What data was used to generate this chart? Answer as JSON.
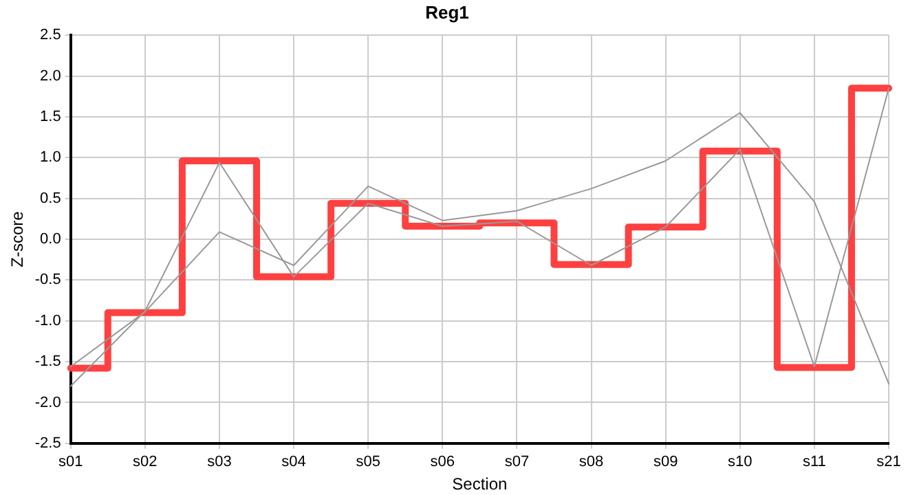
{
  "chart_data": {
    "type": "line",
    "title": "Reg1",
    "xlabel": "Section",
    "ylabel": "Z-score",
    "categories": [
      "s01",
      "s02",
      "s03",
      "s04",
      "s05",
      "s06",
      "s07",
      "s08",
      "s09",
      "s10",
      "s11",
      "s21"
    ],
    "series": [
      {
        "type": "line",
        "color": "#999999",
        "values": [
          -1.8,
          -0.88,
          0.94,
          -0.46,
          0.44,
          0.16,
          0.22,
          -0.32,
          0.15,
          1.1,
          -1.56,
          1.85
        ]
      },
      {
        "type": "line",
        "color": "#999999",
        "values": [
          -1.56,
          -0.89,
          0.09,
          -0.32,
          0.65,
          0.23,
          0.35,
          0.62,
          0.96,
          1.55,
          0.46,
          -1.77
        ]
      },
      {
        "type": "step",
        "color": "#ff4040",
        "values": [
          -1.58,
          -0.9,
          0.96,
          -0.46,
          0.44,
          0.16,
          0.2,
          -0.31,
          0.15,
          1.08,
          -1.57,
          1.85
        ]
      }
    ],
    "ylim": [
      -2.5,
      2.5
    ],
    "yticks": [
      -2.5,
      {
        "value": -2,
        "label": "-2.0"
      },
      -1.5,
      {
        "value": -1,
        "label": "-1.0"
      },
      -0.5,
      {
        "value": 0,
        "label": "0.0"
      },
      0.5,
      {
        "value": 1,
        "label": "1.0"
      },
      1.5,
      {
        "value": 2,
        "label": "2.0"
      },
      2.5
    ],
    "grid": true,
    "legend": false,
    "marker": "none"
  }
}
